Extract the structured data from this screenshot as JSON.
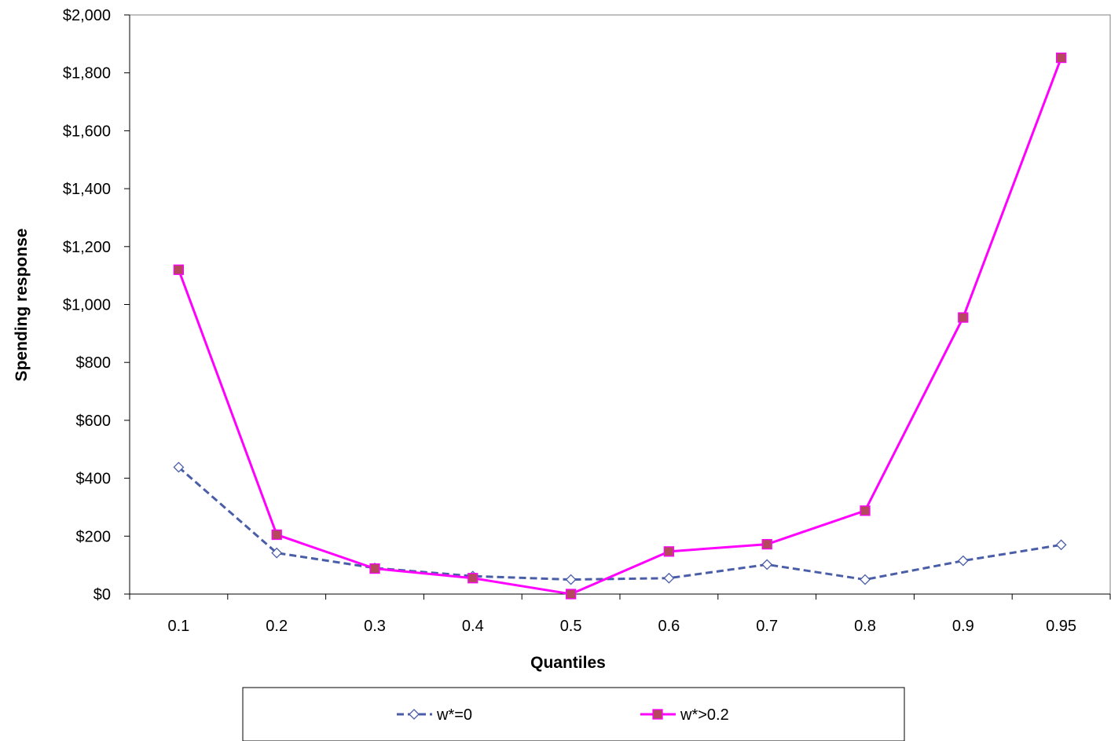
{
  "chart_data": {
    "type": "line",
    "title": "",
    "xlabel": "Quantiles",
    "ylabel": "Spending response",
    "categories": [
      "0.1",
      "0.2",
      "0.3",
      "0.4",
      "0.5",
      "0.6",
      "0.7",
      "0.8",
      "0.9",
      "0.95"
    ],
    "ylim": [
      0,
      2000
    ],
    "ytick_step": 200,
    "ytick_prefix": "$",
    "grid": false,
    "legend_position": "bottom",
    "series": [
      {
        "name": "w*=0",
        "values": [
          438,
          142,
          90,
          62,
          50,
          55,
          102,
          50,
          115,
          170
        ],
        "color": "#4a5ea8",
        "line_style": "dashed",
        "marker": "diamond-open"
      },
      {
        "name": "w*>0.2",
        "values": [
          1120,
          205,
          88,
          55,
          0,
          147,
          172,
          288,
          955,
          1852
        ],
        "color": "#ff00ff",
        "marker_color": "#b5475e",
        "line_style": "solid",
        "marker": "square-filled"
      }
    ]
  }
}
